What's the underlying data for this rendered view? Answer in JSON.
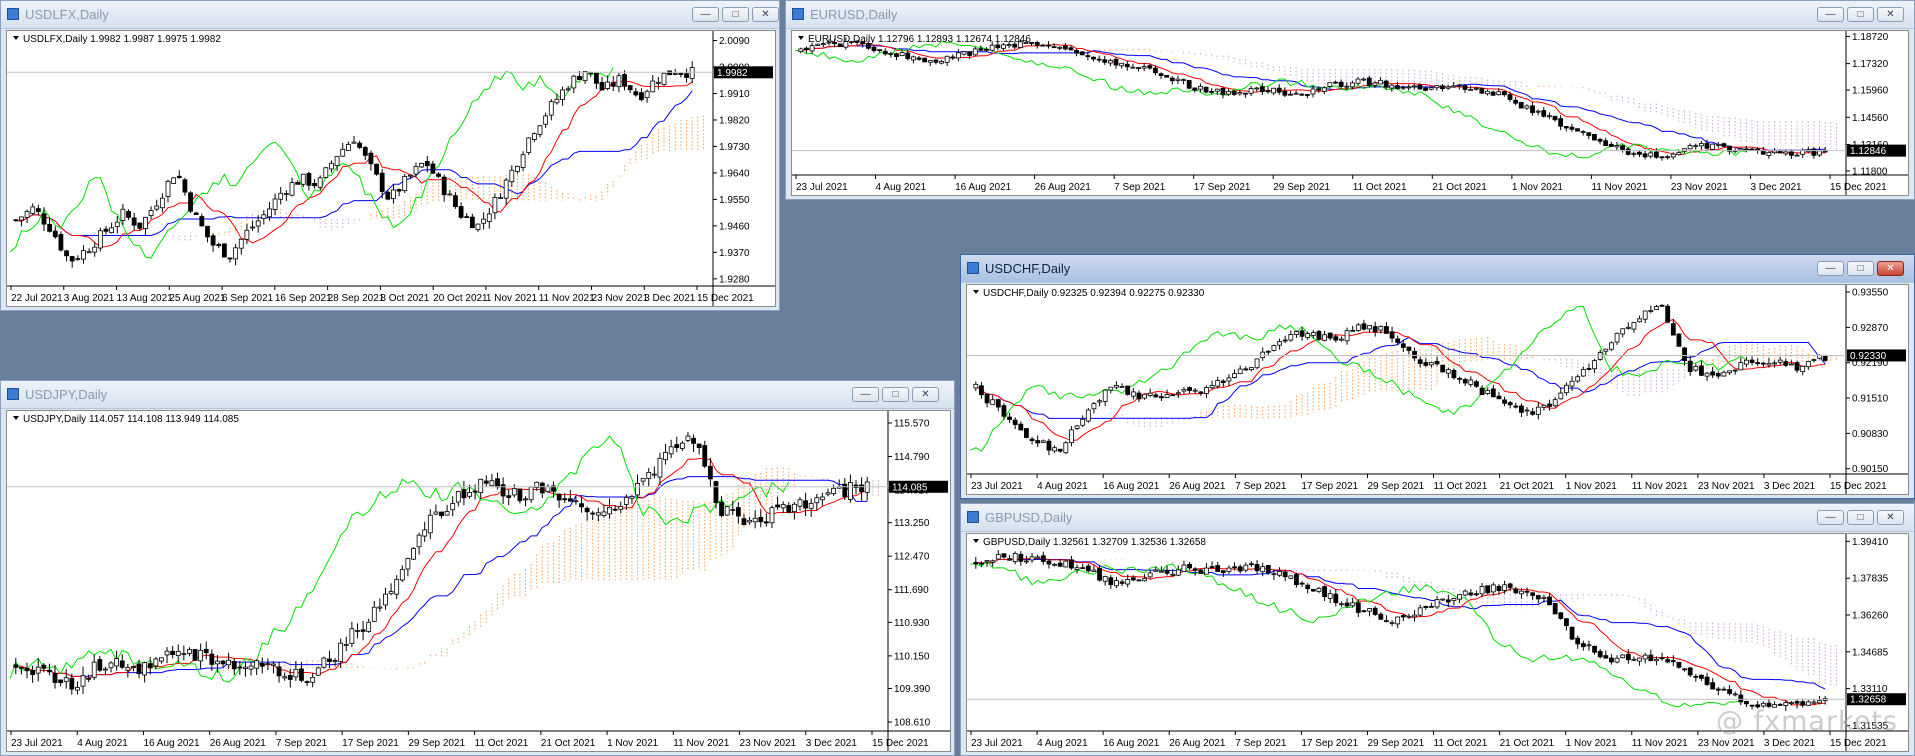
{
  "app": {
    "name": "MetaTrader multi-chart workspace"
  },
  "colors": {
    "price": "#000000",
    "tenkan": "#ff0000",
    "kijun": "#0000ff",
    "chikou": "#00e000",
    "cloud_a": "#ff9a4a",
    "cloud_b": "#c7a2d8",
    "grid": "#c0c0c0"
  },
  "windows": [
    {
      "id": "usdlfx",
      "title": "USDLFX,Daily",
      "active": false,
      "symbol_line": "USDLFX,Daily  1.9982 1.9987 1.9975 1.9982",
      "current_price": "1.9982",
      "y_ticks": [
        "2.0090",
        "2.0000",
        "1.9910",
        "1.9820",
        "1.9730",
        "1.9640",
        "1.9550",
        "1.9460",
        "1.9370",
        "1.9280"
      ],
      "x_ticks": [
        "22 Jul 2021",
        "3 Aug 2021",
        "13 Aug 2021",
        "25 Aug 2021",
        "6 Sep 2021",
        "16 Sep 2021",
        "28 Sep 2021",
        "8 Oct 2021",
        "20 Oct 2021",
        "1 Nov 2021",
        "11 Nov 2021",
        "23 Nov 2021",
        "3 Dec 2021",
        "15 Dec 2021"
      ]
    },
    {
      "id": "eurusd",
      "title": "EURUSD,Daily",
      "active": false,
      "symbol_line": "EURUSD,Daily  1.12796 1.12893 1.12674 1.12846",
      "current_price": "1.12846",
      "y_ticks": [
        "1.18720",
        "1.17320",
        "1.15960",
        "1.14560",
        "1.13160",
        "1.11800"
      ],
      "x_ticks": [
        "23 Jul 2021",
        "4 Aug 2021",
        "16 Aug 2021",
        "26 Aug 2021",
        "7 Sep 2021",
        "17 Sep 2021",
        "29 Sep 2021",
        "11 Oct 2021",
        "21 Oct 2021",
        "1 Nov 2021",
        "11 Nov 2021",
        "23 Nov 2021",
        "3 Dec 2021",
        "15 Dec 2021"
      ]
    },
    {
      "id": "usdchf",
      "title": "USDCHF,Daily",
      "active": true,
      "symbol_line": "USDCHF,Daily  0.92325 0.92394 0.92275 0.92330",
      "current_price": "0.92330",
      "y_ticks": [
        "0.93550",
        "0.92870",
        "0.92190",
        "0.91510",
        "0.90830",
        "0.90150"
      ],
      "x_ticks": [
        "23 Jul 2021",
        "4 Aug 2021",
        "16 Aug 2021",
        "26 Aug 2021",
        "7 Sep 2021",
        "17 Sep 2021",
        "29 Sep 2021",
        "11 Oct 2021",
        "21 Oct 2021",
        "1 Nov 2021",
        "11 Nov 2021",
        "23 Nov 2021",
        "3 Dec 2021",
        "15 Dec 2021"
      ]
    },
    {
      "id": "usdjpy",
      "title": "USDJPY,Daily",
      "active": false,
      "symbol_line": "USDJPY,Daily  114.057 114.108 113.949 114.085",
      "current_price": "114.085",
      "y_ticks": [
        "115.570",
        "114.790",
        "114.010",
        "113.250",
        "112.470",
        "111.690",
        "110.930",
        "110.150",
        "109.390",
        "108.610"
      ],
      "x_ticks": [
        "23 Jul 2021",
        "4 Aug 2021",
        "16 Aug 2021",
        "26 Aug 2021",
        "7 Sep 2021",
        "17 Sep 2021",
        "29 Sep 2021",
        "11 Oct 2021",
        "21 Oct 2021",
        "1 Nov 2021",
        "11 Nov 2021",
        "23 Nov 2021",
        "3 Dec 2021",
        "15 Dec 2021"
      ]
    },
    {
      "id": "gbpusd",
      "title": "GBPUSD,Daily",
      "active": false,
      "symbol_line": "GBPUSD,Daily  1.32561 1.32709 1.32536 1.32658",
      "current_price": "1.32658",
      "y_ticks": [
        "1.39410",
        "1.37835",
        "1.36260",
        "1.34685",
        "1.33110",
        "1.31535"
      ],
      "x_ticks": [
        "23 Jul 2021",
        "4 Aug 2021",
        "16 Aug 2021",
        "26 Aug 2021",
        "7 Sep 2021",
        "17 Sep 2021",
        "29 Sep 2021",
        "11 Oct 2021",
        "21 Oct 2021",
        "1 Nov 2021",
        "11 Nov 2021",
        "23 Nov 2021",
        "3 Dec 2021",
        "15 Dec 2021"
      ]
    }
  ],
  "watermark": "@ fxmarkets",
  "chart_data": [
    {
      "type": "candlestick",
      "symbol": "USDLFX",
      "ylim": [
        1.928,
        2.009
      ],
      "indicators": [
        "Ichimoku Kinko Hyo"
      ],
      "close_path": [
        1.948,
        1.952,
        1.945,
        1.934,
        1.938,
        1.944,
        1.95,
        1.946,
        1.955,
        1.965,
        1.95,
        1.94,
        1.936,
        1.944,
        1.95,
        1.958,
        1.962,
        1.96,
        1.97,
        1.976,
        1.965,
        1.955,
        1.962,
        1.968,
        1.959,
        1.95,
        1.946,
        1.955,
        1.966,
        1.978,
        1.986,
        1.994,
        1.999,
        1.992,
        1.996,
        1.99,
        1.996,
        1.999,
        1.998
      ]
    },
    {
      "type": "candlestick",
      "symbol": "EURUSD",
      "ylim": [
        1.118,
        1.1872
      ],
      "indicators": [
        "Ichimoku Kinko Hyo"
      ],
      "close_path": [
        1.18,
        1.184,
        1.182,
        1.178,
        1.174,
        1.178,
        1.182,
        1.185,
        1.18,
        1.176,
        1.172,
        1.168,
        1.16,
        1.158,
        1.16,
        1.157,
        1.162,
        1.164,
        1.162,
        1.16,
        1.161,
        1.158,
        1.15,
        1.142,
        1.134,
        1.128,
        1.125,
        1.131,
        1.13,
        1.128,
        1.127,
        1.128
      ]
    },
    {
      "type": "candlestick",
      "symbol": "USDCHF",
      "ylim": [
        0.9015,
        0.9355
      ],
      "indicators": [
        "Ichimoku Kinko Hyo"
      ],
      "close_path": [
        0.917,
        0.912,
        0.907,
        0.905,
        0.912,
        0.918,
        0.915,
        0.916,
        0.916,
        0.918,
        0.921,
        0.926,
        0.928,
        0.926,
        0.929,
        0.928,
        0.923,
        0.921,
        0.918,
        0.915,
        0.912,
        0.914,
        0.919,
        0.925,
        0.93,
        0.933,
        0.921,
        0.919,
        0.922,
        0.922,
        0.921,
        0.923
      ]
    },
    {
      "type": "candlestick",
      "symbol": "USDJPY",
      "ylim": [
        108.61,
        115.57
      ],
      "indicators": [
        "Ichimoku Kinko Hyo"
      ],
      "close_path": [
        110.0,
        109.7,
        109.5,
        110.0,
        109.8,
        110.1,
        110.2,
        110.0,
        110.0,
        109.8,
        109.6,
        110.3,
        111.0,
        112.0,
        113.3,
        113.8,
        114.2,
        113.9,
        114.1,
        113.8,
        113.5,
        113.9,
        114.7,
        115.4,
        113.6,
        113.3,
        113.5,
        113.7,
        114.0,
        114.05
      ]
    },
    {
      "type": "candlestick",
      "symbol": "GBPUSD",
      "ylim": [
        1.31535,
        1.3941
      ],
      "indicators": [
        "Ichimoku Kinko Hyo"
      ],
      "close_path": [
        1.385,
        1.388,
        1.386,
        1.382,
        1.376,
        1.38,
        1.383,
        1.381,
        1.383,
        1.377,
        1.371,
        1.364,
        1.36,
        1.368,
        1.372,
        1.375,
        1.37,
        1.35,
        1.344,
        1.345,
        1.339,
        1.33,
        1.325,
        1.325,
        1.327
      ]
    }
  ]
}
